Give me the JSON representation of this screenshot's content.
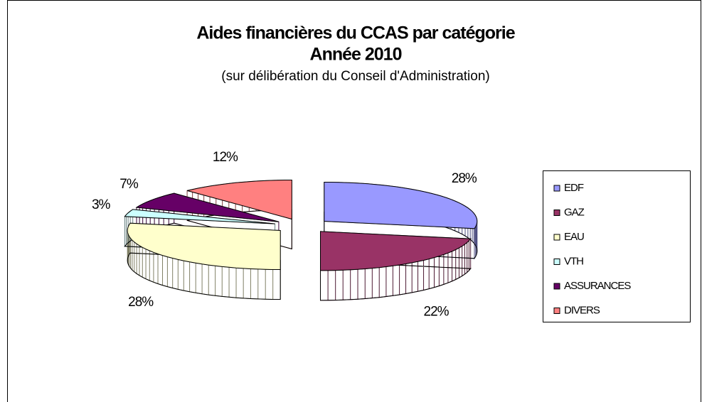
{
  "chart_data": {
    "type": "pie3d",
    "title": [
      "Aides financières du CCAS par catégorie",
      "Année 2010"
    ],
    "subtitle": "(sur délibération du Conseil d'Administration)",
    "categories": [
      "EDF",
      "GAZ",
      "EAU",
      "VTH",
      "ASSURANCES",
      "DIVERS"
    ],
    "values": [
      28,
      22,
      28,
      3,
      7,
      12
    ],
    "value_labels": [
      "28%",
      "22%",
      "28%",
      "3%",
      "7%",
      "12%"
    ],
    "colors": [
      "#9999ff",
      "#993366",
      "#ffffcc",
      "#ccffff",
      "#660066",
      "#ff8080"
    ],
    "legend": "right"
  }
}
